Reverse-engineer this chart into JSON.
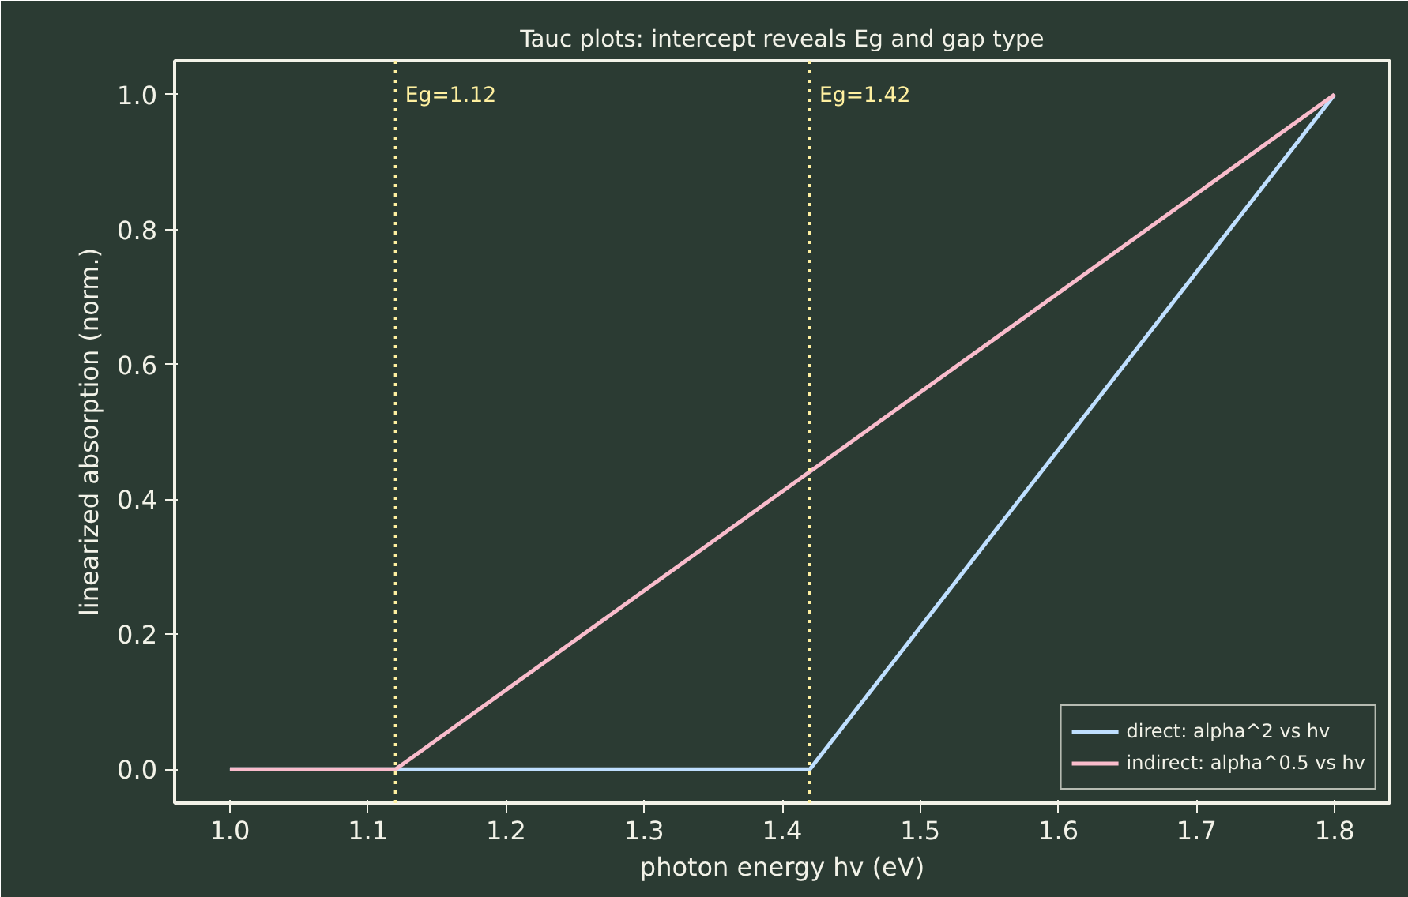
{
  "chart_data": {
    "type": "line",
    "title": "Tauc plots: intercept reveals Eg and gap type",
    "xlabel": "photon energy hv (eV)",
    "ylabel": "linearized absorption (norm.)",
    "series": [
      {
        "name": "direct: alpha^2 vs hv",
        "color": "#bfdfff",
        "x": [
          1.0,
          1.42,
          1.8
        ],
        "values": [
          0,
          0,
          1.0
        ]
      },
      {
        "name": "indirect: alpha^0.5 vs hv",
        "color": "#f9bccc",
        "x": [
          1.0,
          1.12,
          1.8
        ],
        "values": [
          0,
          0,
          1.0
        ]
      }
    ],
    "ref_lines": [
      {
        "axis": "x",
        "value": 1.12,
        "label": "Eg=1.12",
        "color": "#fff0a0",
        "line_style": "dotted"
      },
      {
        "axis": "x",
        "value": 1.42,
        "label": "Eg=1.42",
        "color": "#fff0a0",
        "line_style": "dotted"
      }
    ],
    "xlim": [
      0.96,
      1.84
    ],
    "ylim": [
      -0.05,
      1.05
    ],
    "xticks": [
      {
        "value": 1,
        "label": "1.0"
      },
      1.1,
      1.2,
      1.3,
      1.4,
      1.5,
      1.6,
      1.7,
      1.8
    ],
    "yticks": [
      {
        "value": 0,
        "label": "0.0"
      },
      0.2,
      0.4,
      0.6,
      0.8,
      {
        "value": 1,
        "label": "1.0"
      }
    ],
    "grid": false,
    "legend": "bottom right",
    "marker": "none",
    "line_style": "solid"
  }
}
